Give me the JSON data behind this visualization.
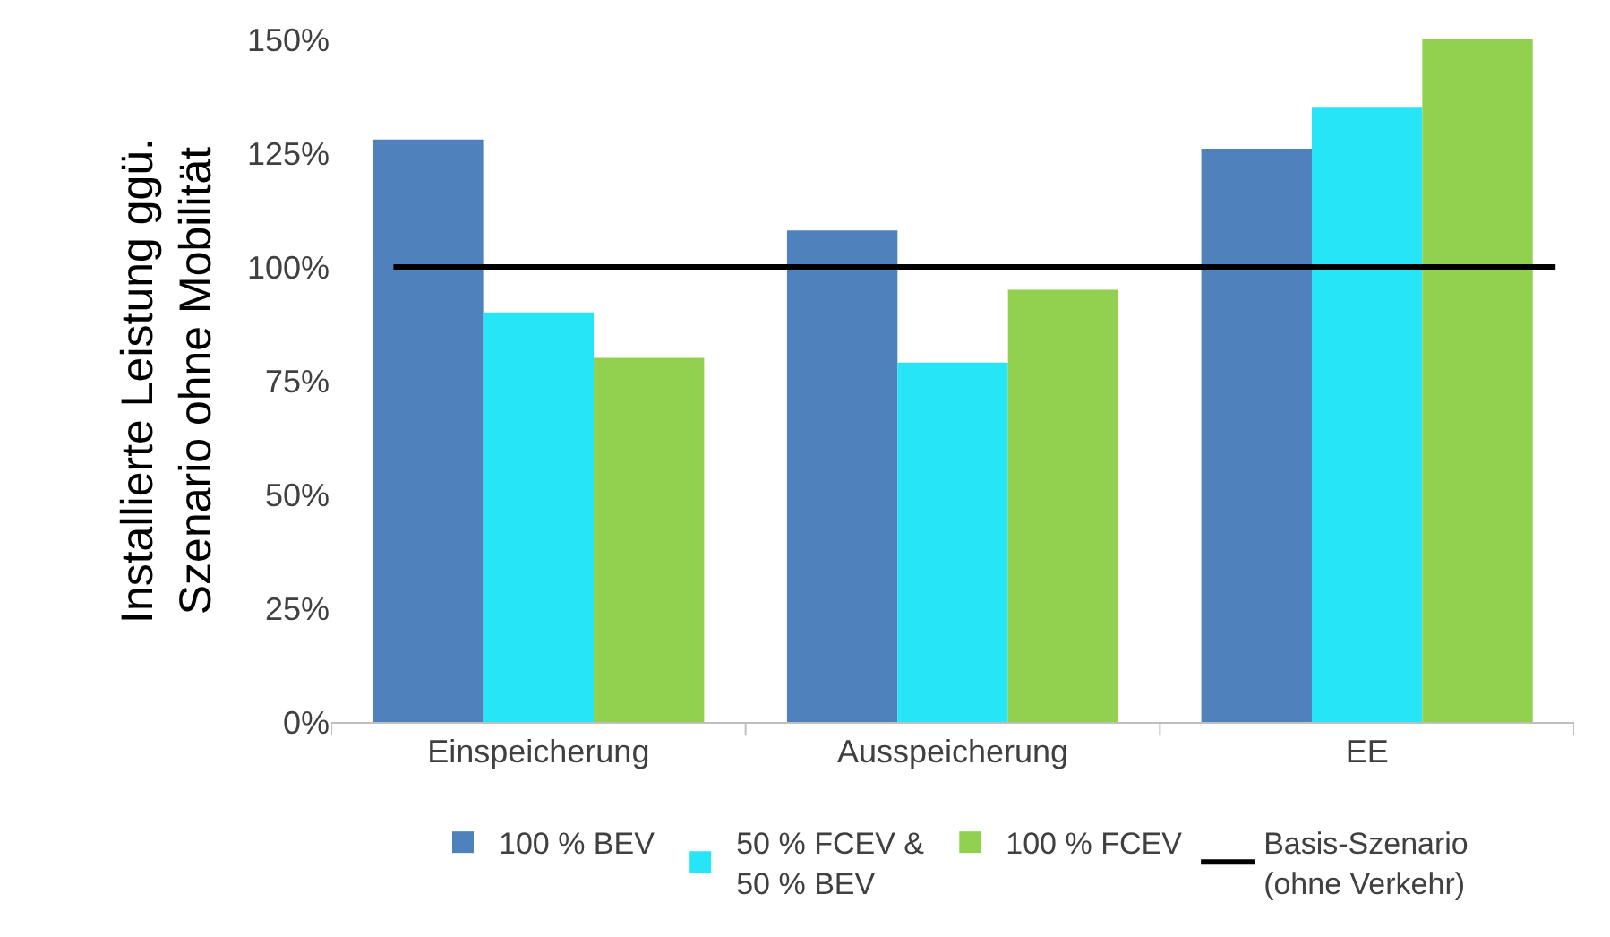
{
  "chart_data": {
    "type": "bar",
    "ylabel": "Installierte Leistung ggü.\nSzenario ohne Mobilität",
    "categories": [
      "Einspeicherung",
      "Ausspeicherung",
      "EE"
    ],
    "series": [
      {
        "name": "100 % BEV",
        "color": "#4f81bd",
        "values": [
          128,
          108,
          126
        ]
      },
      {
        "name": "50 % FCEV &\n50 % BEV",
        "color": "#25e5f7",
        "values": [
          90,
          79,
          135
        ]
      },
      {
        "name": "100 % FCEV",
        "color": "#92d050",
        "values": [
          80,
          95,
          150
        ]
      }
    ],
    "ylim": [
      0,
      150
    ],
    "yticks": [
      {
        "value": 0,
        "label": "0%"
      },
      {
        "value": 25,
        "label": "25%"
      },
      {
        "value": 50,
        "label": "50%"
      },
      {
        "value": 75,
        "label": "75%"
      },
      {
        "value": 100,
        "label": "100%"
      },
      {
        "value": 125,
        "label": "125%"
      },
      {
        "value": 150,
        "label": "150%"
      }
    ],
    "ref_lines": [
      {
        "axis": "y",
        "value": 100,
        "label": "Basis-Szenario\n(ohne Verkehr)",
        "color": "#000000"
      }
    ],
    "legend": "bottom"
  }
}
